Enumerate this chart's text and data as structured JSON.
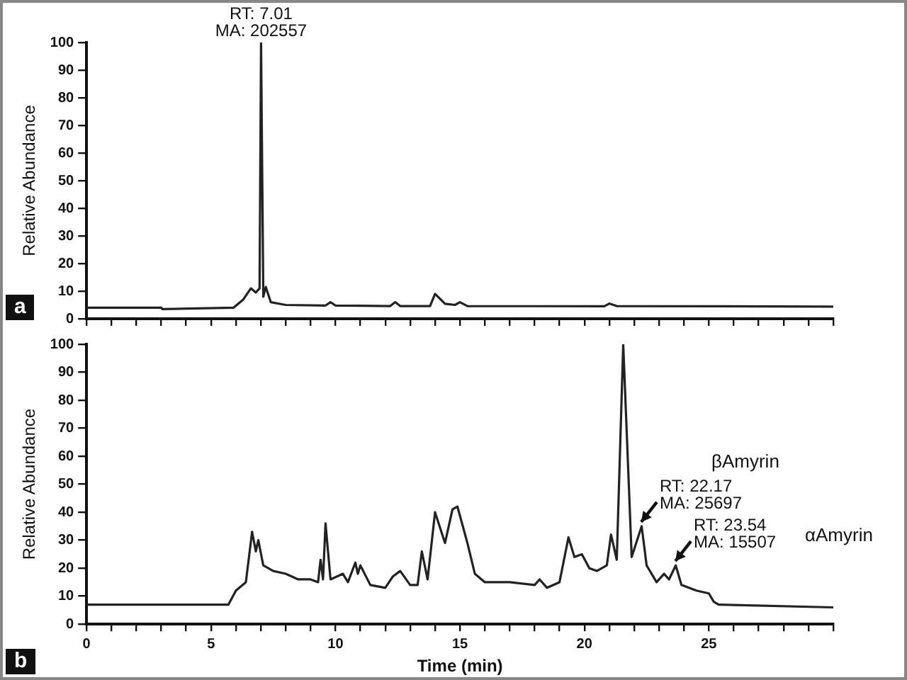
{
  "chart_data": [
    {
      "type": "line",
      "ylabel": "Relative Abundance",
      "color": "#222222",
      "grid": false,
      "tick_labels": "y",
      "marker": "none",
      "xlim": [
        0,
        30
      ],
      "ylim": [
        0,
        100
      ],
      "xticks": [
        0,
        {
          "value": 1,
          "label": null
        },
        {
          "value": 2,
          "label": null
        },
        {
          "value": 3,
          "label": null
        },
        {
          "value": 4,
          "label": null
        },
        5,
        {
          "value": 6,
          "label": null
        },
        {
          "value": 7,
          "label": null
        },
        {
          "value": 8,
          "label": null
        },
        {
          "value": 9,
          "label": null
        },
        10,
        {
          "value": 11,
          "label": null
        },
        {
          "value": 12,
          "label": null
        },
        {
          "value": 13,
          "label": null
        },
        {
          "value": 14,
          "label": null
        },
        15,
        {
          "value": 16,
          "label": null
        },
        {
          "value": 17,
          "label": null
        },
        {
          "value": 18,
          "label": null
        },
        {
          "value": 19,
          "label": null
        },
        20,
        {
          "value": 21,
          "label": null
        },
        {
          "value": 22,
          "label": null
        },
        {
          "value": 23,
          "label": null
        },
        {
          "value": 24,
          "label": null
        },
        25,
        {
          "value": 26,
          "label": null
        },
        {
          "value": 27,
          "label": null
        },
        {
          "value": 28,
          "label": null
        },
        {
          "value": 29,
          "label": null
        },
        {
          "value": 30,
          "label": null
        }
      ],
      "yticks": [
        0,
        10,
        20,
        30,
        40,
        50,
        60,
        70,
        80,
        90,
        100
      ],
      "x": [
        0,
        3.0,
        3.05,
        5.9,
        6.3,
        6.6,
        6.8,
        6.95,
        7.01,
        7.1,
        7.2,
        7.4,
        8,
        9.6,
        9.8,
        10,
        12.2,
        12.4,
        12.6,
        13.8,
        14.0,
        14.4,
        14.8,
        15.0,
        15.3,
        20.8,
        21.0,
        21.3,
        30
      ],
      "values": [
        4,
        4,
        3.5,
        4,
        7,
        11,
        9.5,
        11,
        100,
        8,
        11.5,
        6,
        5,
        4.8,
        6,
        4.8,
        4.6,
        6,
        4.6,
        4.6,
        9,
        5.4,
        5,
        6,
        4.6,
        4.5,
        5.5,
        4.6,
        4.4
      ],
      "annotations": [
        {
          "text": "RT: 7.01\nMA: 202557",
          "x": 7.01,
          "y": 100
        },
        "a"
      ]
    },
    {
      "type": "line",
      "xlabel": "Time (min)",
      "ylabel": "Relative Abundance",
      "color": "#222222",
      "grid": false,
      "marker": "none",
      "xlim": [
        0,
        30
      ],
      "ylim": [
        0,
        100
      ],
      "xticks": [
        0,
        {
          "value": 1,
          "label": null
        },
        {
          "value": 2,
          "label": null
        },
        {
          "value": 3,
          "label": null
        },
        {
          "value": 4,
          "label": null
        },
        5,
        {
          "value": 6,
          "label": null
        },
        {
          "value": 7,
          "label": null
        },
        {
          "value": 8,
          "label": null
        },
        {
          "value": 9,
          "label": null
        },
        10,
        {
          "value": 11,
          "label": null
        },
        {
          "value": 12,
          "label": null
        },
        {
          "value": 13,
          "label": null
        },
        {
          "value": 14,
          "label": null
        },
        15,
        {
          "value": 16,
          "label": null
        },
        {
          "value": 17,
          "label": null
        },
        {
          "value": 18,
          "label": null
        },
        {
          "value": 19,
          "label": null
        },
        20,
        {
          "value": 21,
          "label": null
        },
        {
          "value": 22,
          "label": null
        },
        {
          "value": 23,
          "label": null
        },
        {
          "value": 24,
          "label": null
        },
        25,
        {
          "value": 26,
          "label": null
        },
        {
          "value": 27,
          "label": null
        },
        {
          "value": 28,
          "label": null
        },
        {
          "value": 29,
          "label": null
        },
        {
          "value": 30,
          "label": null
        }
      ],
      "yticks": [
        0,
        10,
        20,
        30,
        40,
        50,
        60,
        70,
        80,
        90,
        100
      ],
      "x": [
        0,
        3,
        5.7,
        6.0,
        6.4,
        6.65,
        6.8,
        6.9,
        7.1,
        7.5,
        8.0,
        8.5,
        9.0,
        9.3,
        9.4,
        9.5,
        9.6,
        9.8,
        10.3,
        10.5,
        10.8,
        10.9,
        11.0,
        11.4,
        12.0,
        12.3,
        12.6,
        13.0,
        13.3,
        13.47,
        13.7,
        14.0,
        14.4,
        14.7,
        14.9,
        15.3,
        15.6,
        16.0,
        17.0,
        18.0,
        18.2,
        18.5,
        19.0,
        19.36,
        19.6,
        19.9,
        20.2,
        20.5,
        20.9,
        21.07,
        21.3,
        21.56,
        21.9,
        22.3,
        22.5,
        22.9,
        23.2,
        23.4,
        23.67,
        23.9,
        24.5,
        25.0,
        25.2,
        25.4,
        30
      ],
      "values": [
        7,
        7,
        7,
        12,
        15,
        33,
        26,
        30,
        21,
        19,
        18,
        16,
        16,
        15,
        23,
        16,
        36,
        16,
        18,
        15,
        22,
        18,
        21,
        14,
        13,
        17,
        19,
        14,
        14,
        26,
        16,
        40,
        29,
        41,
        42,
        29,
        18,
        15,
        15,
        14,
        16,
        13,
        15,
        31,
        24,
        25,
        20,
        19,
        21,
        32,
        23,
        100,
        24,
        35,
        21,
        15,
        18,
        16,
        21,
        14,
        12,
        11,
        8,
        7,
        6
      ],
      "annotations": [
        {
          "text": "RT: 22.17\nMA: 25697",
          "x": 22.17,
          "y": 35
        },
        {
          "text": "RT: 23.54\nMA: 15507",
          "x": 23.54,
          "y": 21
        },
        "βAmyrin",
        "αAmyrin",
        "b"
      ]
    }
  ]
}
